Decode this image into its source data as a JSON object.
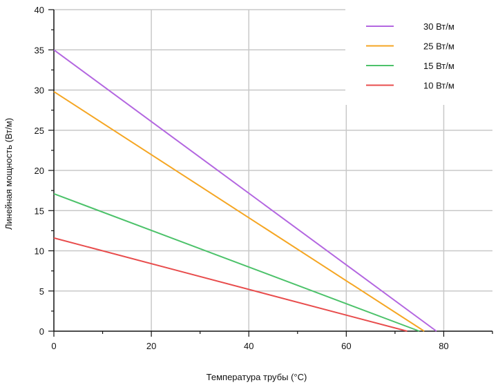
{
  "chart_data": {
    "type": "line",
    "xlabel": "Температура трубы (°C)",
    "ylabel": "Линейная мощность (Вт/м)",
    "xlim": [
      0,
      90
    ],
    "ylim": [
      0,
      40
    ],
    "x_ticks": [
      0,
      20,
      40,
      60,
      80
    ],
    "y_ticks": [
      0,
      5,
      10,
      15,
      20,
      25,
      30,
      35,
      40
    ],
    "grid": true,
    "legend_position": "top-right",
    "series": [
      {
        "name": "30 Вт/м",
        "color": "#b366e0",
        "x": [
          0,
          78.5
        ],
        "y": [
          35.0,
          0
        ]
      },
      {
        "name": "25 Вт/м",
        "color": "#f5a623",
        "x": [
          0,
          76.0
        ],
        "y": [
          29.8,
          0
        ]
      },
      {
        "name": "15 Вт/м",
        "color": "#4cc26a",
        "x": [
          0,
          75.0
        ],
        "y": [
          17.1,
          0
        ]
      },
      {
        "name": "10 Вт/м",
        "color": "#e84c4c",
        "x": [
          0,
          72.5
        ],
        "y": [
          11.6,
          0
        ]
      }
    ]
  }
}
